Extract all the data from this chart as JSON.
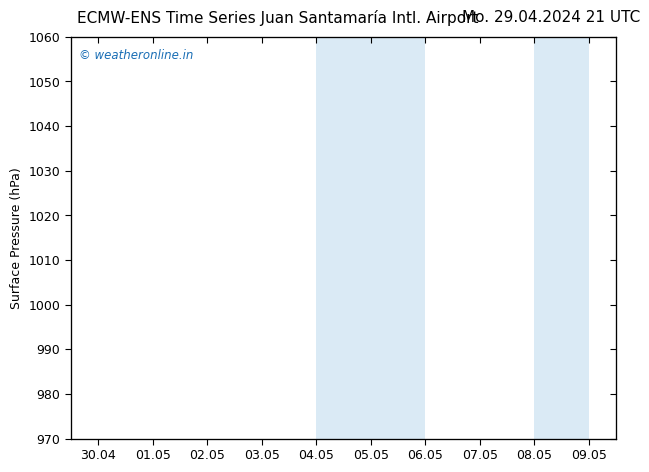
{
  "title_left": "ECMW-ENS Time Series Juan Santamaría Intl. Airport",
  "title_right": "Mo. 29.04.2024 21 UTC",
  "ylabel": "Surface Pressure (hPa)",
  "ylim": [
    970,
    1060
  ],
  "yticks": [
    970,
    980,
    990,
    1000,
    1010,
    1020,
    1030,
    1040,
    1050,
    1060
  ],
  "xtick_labels": [
    "30.04",
    "01.05",
    "02.05",
    "03.05",
    "04.05",
    "05.05",
    "06.05",
    "07.05",
    "08.05",
    "09.05"
  ],
  "xtick_positions": [
    0,
    1,
    2,
    3,
    4,
    5,
    6,
    7,
    8,
    9
  ],
  "xlim": [
    -0.5,
    9.5
  ],
  "shaded_bands": [
    {
      "x_start": 4.0,
      "x_end": 5.0,
      "color": "#daeaf5"
    },
    {
      "x_start": 5.0,
      "x_end": 6.0,
      "color": "#daeaf5"
    },
    {
      "x_start": 8.0,
      "x_end": 9.0,
      "color": "#daeaf5"
    }
  ],
  "background_color": "#ffffff",
  "plot_bg_color": "#ffffff",
  "watermark_text": "© weatheronline.in",
  "watermark_color": "#1a6eb5",
  "title_fontsize": 11,
  "axis_label_fontsize": 9,
  "tick_fontsize": 9,
  "spine_color": "#000000"
}
